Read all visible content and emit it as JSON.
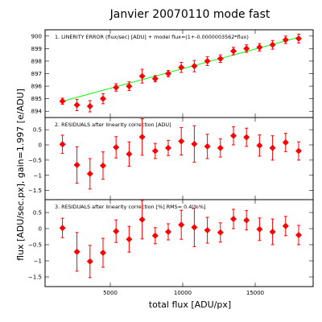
{
  "chart_data": {
    "type": "scatter",
    "title": "Janvier 20070110 mode fast",
    "xlabel": "total flux [ADU/px]",
    "ylabel": "flux [ADU/sec.px], gain=1.997 [e/ADU]",
    "xlim": [
      500,
      19000
    ],
    "xticks": [
      5000,
      10000,
      15000
    ],
    "panels": [
      {
        "label": "1. LINERITY ERROR (flux/sec) [ADU] + model flux=(1+-0.0000003562*flux)",
        "ylim": [
          893.5,
          900.5
        ],
        "yticks": [
          894,
          895,
          896,
          897,
          898,
          899,
          900
        ],
        "fit": {
          "x": [
            1700,
            18000
          ],
          "y": [
            894.8,
            899.9
          ]
        },
        "series": [
          {
            "x": [
              1700,
              2700,
              3600,
              4500,
              5400,
              6300,
              7200,
              8100,
              9000,
              9900,
              10800,
              11700,
              12600,
              13500,
              14400,
              15300,
              16200,
              17100,
              18000
            ],
            "y": [
              894.8,
              894.5,
              894.4,
              895.0,
              895.9,
              896.0,
              896.8,
              896.6,
              897.0,
              897.5,
              897.6,
              898.0,
              898.2,
              898.8,
              899.0,
              899.1,
              899.3,
              899.7,
              899.8
            ],
            "err": [
              0.25,
              0.45,
              0.45,
              0.4,
              0.3,
              0.35,
              0.55,
              0.25,
              0.25,
              0.4,
              0.45,
              0.35,
              0.3,
              0.3,
              0.3,
              0.3,
              0.35,
              0.3,
              0.35
            ]
          }
        ]
      },
      {
        "label": "2. RESIDUALS after linearity correction [ADU]",
        "ylim": [
          -1.8,
          0.9
        ],
        "yticks": [
          -1.5,
          -1,
          -0.5,
          0,
          0.5
        ],
        "series": [
          {
            "x": [
              1700,
              2700,
              3600,
              4500,
              5400,
              6300,
              7200,
              8100,
              9000,
              9900,
              10800,
              11700,
              12600,
              13500,
              14400,
              15300,
              16200,
              17100,
              18000
            ],
            "y": [
              0.02,
              -0.66,
              -0.95,
              -0.68,
              -0.08,
              -0.3,
              0.26,
              -0.2,
              -0.1,
              0.12,
              0.03,
              -0.05,
              -0.1,
              0.3,
              0.25,
              -0.02,
              -0.1,
              0.08,
              -0.2
            ],
            "err": [
              0.3,
              0.6,
              0.5,
              0.45,
              0.35,
              0.4,
              0.6,
              0.25,
              0.25,
              0.45,
              0.6,
              0.4,
              0.3,
              0.3,
              0.3,
              0.35,
              0.4,
              0.3,
              0.3
            ]
          }
        ]
      },
      {
        "label": "3. RESIDUALS after linearity correction [%] RMS=  0.4[%%]",
        "ylim": [
          -1.8,
          0.9
        ],
        "yticks": [
          -1.5,
          -1,
          -0.5,
          0,
          0.5
        ],
        "series": [
          {
            "x": [
              1700,
              2700,
              3600,
              4500,
              5400,
              6300,
              7200,
              8100,
              9000,
              9900,
              10800,
              11700,
              12600,
              13500,
              14400,
              15300,
              16200,
              17100,
              18000
            ],
            "y": [
              0.02,
              -0.72,
              -1.02,
              -0.75,
              -0.08,
              -0.33,
              0.28,
              -0.22,
              -0.1,
              0.12,
              0.04,
              -0.05,
              -0.12,
              0.3,
              0.26,
              -0.02,
              -0.1,
              0.08,
              -0.2
            ],
            "err": [
              0.3,
              0.6,
              0.5,
              0.45,
              0.35,
              0.4,
              0.6,
              0.25,
              0.25,
              0.45,
              0.6,
              0.4,
              0.3,
              0.3,
              0.3,
              0.35,
              0.4,
              0.3,
              0.3
            ]
          }
        ]
      }
    ]
  }
}
